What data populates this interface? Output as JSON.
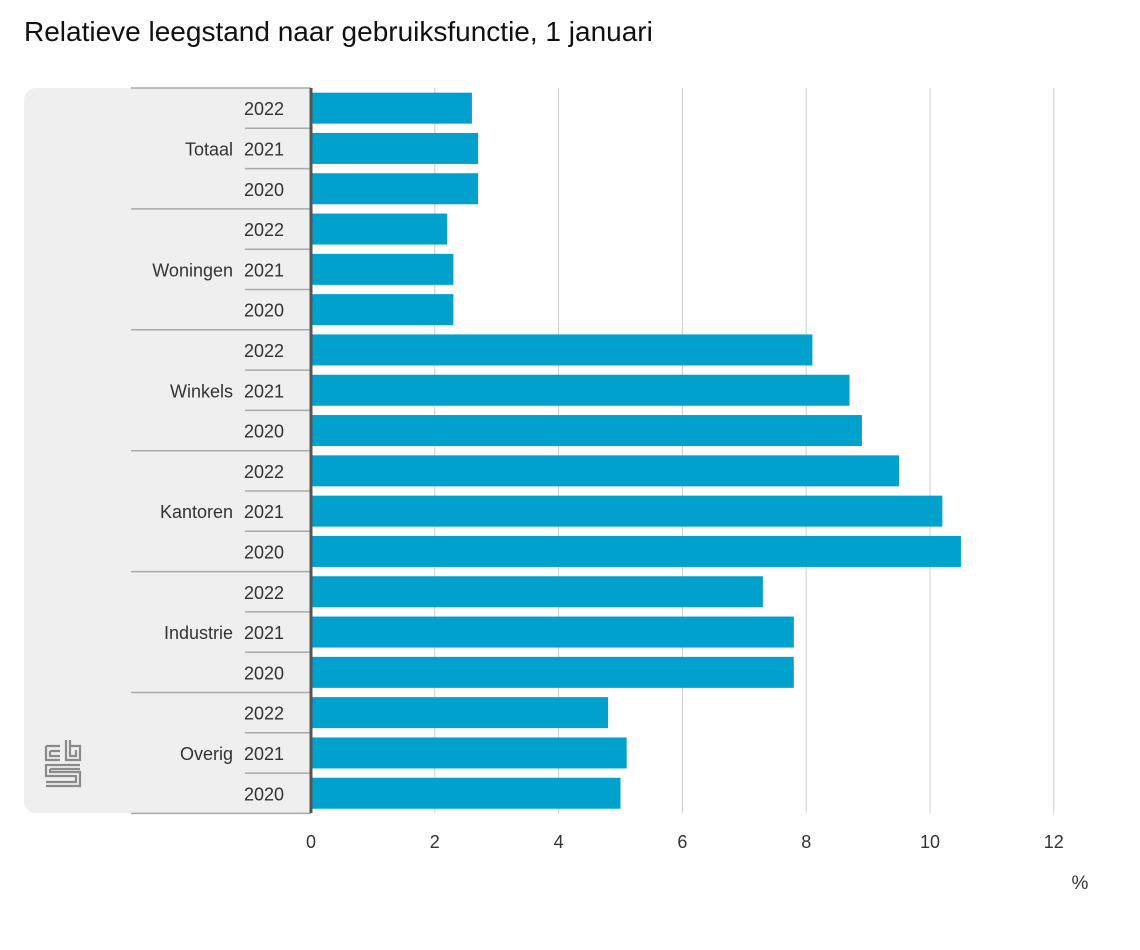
{
  "title": "Relatieve leegstand naar gebruiksfunctie, 1 januari",
  "colors": {
    "bar": "#00a1cd",
    "panel": "#efefef",
    "grid": "#cccccc",
    "axis": "#555555"
  },
  "logo_text": "cbs",
  "chart_data": {
    "type": "bar",
    "orientation": "horizontal",
    "title": "Relatieve leegstand naar gebruiksfunctie, 1 januari",
    "xlabel": "%",
    "ylabel": "",
    "xlim": [
      0,
      12
    ],
    "xticks": [
      "0",
      "2",
      "4",
      "6",
      "8",
      "10",
      "12"
    ],
    "grid": true,
    "groups": [
      {
        "name": "Totaal",
        "years": [
          "2022",
          "2021",
          "2020"
        ],
        "values": [
          2.6,
          2.7,
          2.7
        ]
      },
      {
        "name": "Woningen",
        "years": [
          "2022",
          "2021",
          "2020"
        ],
        "values": [
          2.2,
          2.3,
          2.3
        ]
      },
      {
        "name": "Winkels",
        "years": [
          "2022",
          "2021",
          "2020"
        ],
        "values": [
          8.1,
          8.7,
          8.9
        ]
      },
      {
        "name": "Kantoren",
        "years": [
          "2022",
          "2021",
          "2020"
        ],
        "values": [
          9.5,
          10.2,
          10.5
        ]
      },
      {
        "name": "Industrie",
        "years": [
          "2022",
          "2021",
          "2020"
        ],
        "values": [
          7.3,
          7.8,
          7.8
        ]
      },
      {
        "name": "Overig",
        "years": [
          "2022",
          "2021",
          "2020"
        ],
        "values": [
          4.8,
          5.1,
          5.0
        ]
      }
    ]
  }
}
